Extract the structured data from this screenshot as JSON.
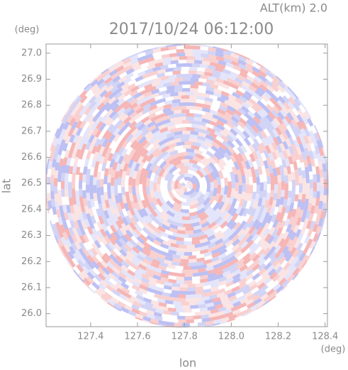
{
  "chart_data": {
    "type": "radar-ppi",
    "title": "2017/10/24 06:12:00",
    "altitude_label": "ALT(km) 2.0",
    "x_label": "lon",
    "y_label": "lat",
    "x_unit": "(deg)",
    "y_unit": "(deg)",
    "xlim": [
      127.21,
      128.41
    ],
    "ylim": [
      25.95,
      27.035
    ],
    "xticks": [
      127.4,
      127.6,
      {
        "value": 127.8,
        "label": "127.8"
      },
      {
        "value": 128.0,
        "label": "128.0"
      },
      128.2,
      128.4
    ],
    "yticks": [
      {
        "value": 26.0,
        "label": "26.0"
      },
      26.1,
      26.2,
      26.3,
      26.4,
      26.5,
      26.6,
      26.7,
      26.8,
      26.9,
      {
        "value": 27.0,
        "label": "27.0"
      }
    ]
  }
}
